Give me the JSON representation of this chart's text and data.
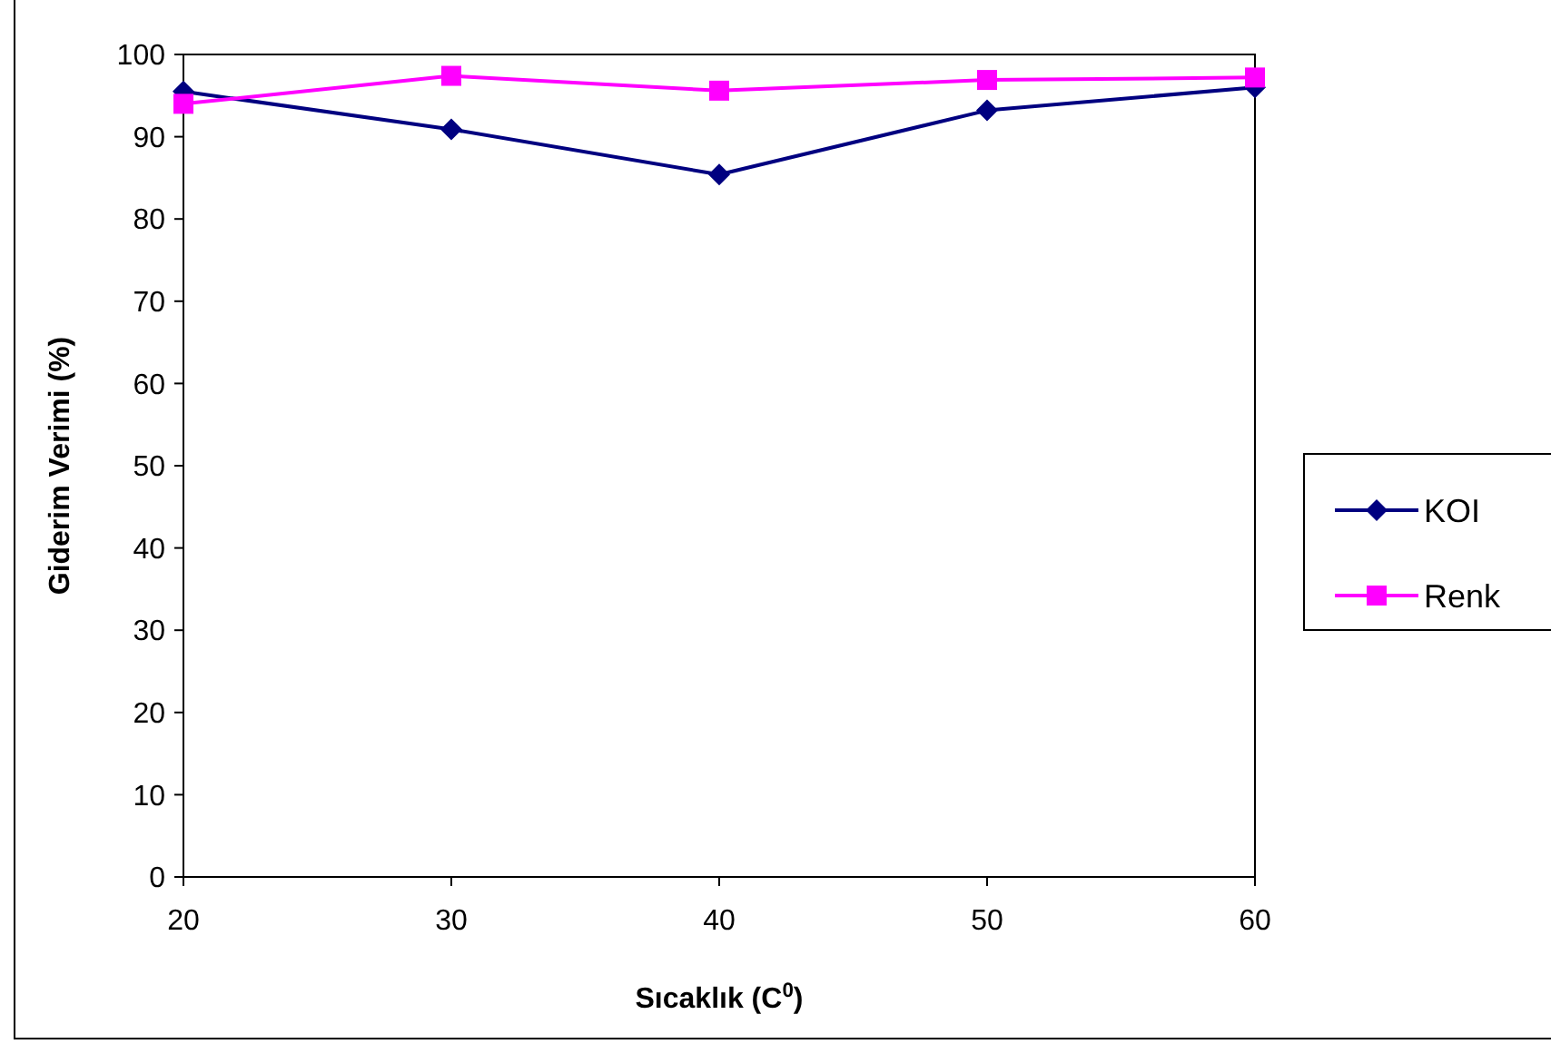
{
  "chart_data": {
    "type": "line",
    "xlabel": "Sıcaklık (C$^{0}$)",
    "ylabel": "Giderim Verimi (%)",
    "x": [
      20,
      30,
      40,
      50,
      60
    ],
    "xlim": [
      20,
      60
    ],
    "xticks": [
      20,
      30,
      40,
      50,
      60
    ],
    "ylim": [
      0,
      100
    ],
    "yticks": [
      0,
      10,
      20,
      30,
      40,
      50,
      60,
      70,
      80,
      90,
      100
    ],
    "grid": false,
    "legend": "right",
    "series": [
      {
        "name": "KOI",
        "color": "#000080",
        "marker": "diamond",
        "values": [
          95.5,
          90.9,
          85.4,
          93.2,
          96.0
        ]
      },
      {
        "name": "Renk",
        "color": "#ff00ff",
        "marker": "square",
        "values": [
          94.0,
          97.4,
          95.6,
          96.9,
          97.2
        ]
      }
    ]
  }
}
